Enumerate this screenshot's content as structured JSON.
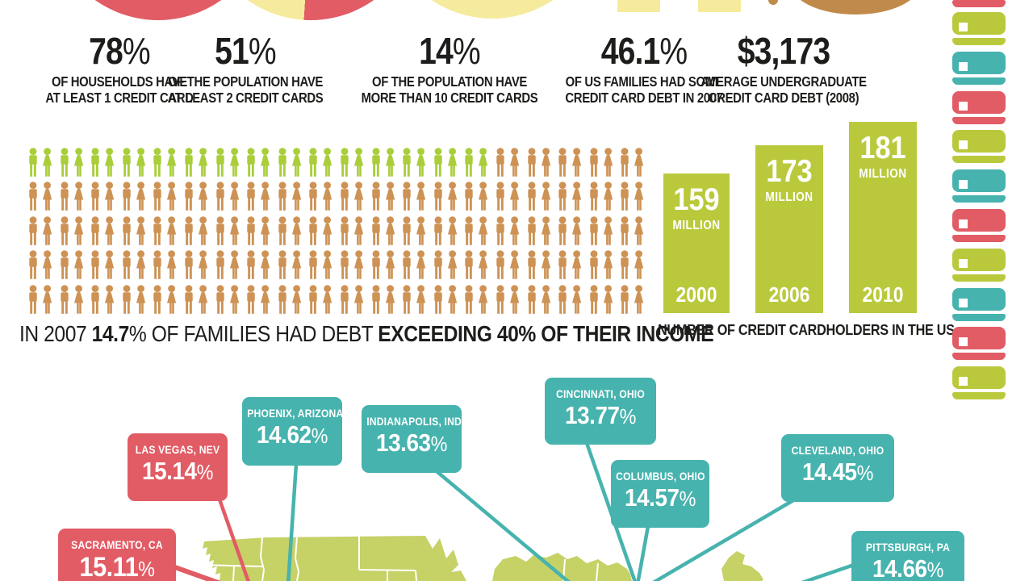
{
  "stats": [
    {
      "value": "78%",
      "lines": [
        "OF HOUSEHOLDS HAVE",
        "AT LEAST 1 CREDIT CARD"
      ]
    },
    {
      "value": "51%",
      "lines": [
        "OF THE POPULATION HAVE",
        "AT LEAST 2 CREDIT CARDS"
      ]
    },
    {
      "value": "14%",
      "lines": [
        "OF THE POPULATION HAVE",
        "MORE THAN 10 CREDIT CARDS"
      ]
    },
    {
      "value": "46.1%",
      "lines": [
        "OF US FAMILIES HAD SOME",
        "CREDIT CARD DEBT IN 2007"
      ]
    },
    {
      "value": "$3,173",
      "lines": [
        "AVERAGE UNDERGRADUATE",
        "CREDIT CARD DEBT (2008)"
      ]
    }
  ],
  "pictogram": {
    "rows": 5,
    "couples_per_row": 20,
    "green_couples_row1": 15,
    "caption_parts": [
      {
        "text": "IN 2007 ",
        "bold": false
      },
      {
        "text": "14.7",
        "bold": true
      },
      {
        "text": "% OF FAMILIES HAD DEBT ",
        "bold": false
      },
      {
        "text": "EXCEEDING 40% OF THEIR INCOME",
        "bold": true
      }
    ]
  },
  "chart_data": [
    {
      "type": "pie",
      "label": "OF HOUSEHOLDS HAVE AT LEAST 1 CREDIT CARD",
      "value_pct": 78
    },
    {
      "type": "pie",
      "label": "OF THE POPULATION HAVE AT LEAST 2 CREDIT CARDS",
      "value_pct": 51
    },
    {
      "type": "pie",
      "label": "OF THE POPULATION HAVE MORE THAN 10 CREDIT CARDS",
      "value_pct": 14
    },
    {
      "type": "pie",
      "label": "OF US FAMILIES HAD SOME CREDIT CARD DEBT IN 2007",
      "value_pct": 46.1
    },
    {
      "type": "stat",
      "label": "AVERAGE UNDERGRADUATE CREDIT CARD DEBT (2008)",
      "value_usd": 3173
    },
    {
      "type": "pictogram",
      "label": "IN 2007 14.7% OF FAMILIES HAD DEBT EXCEEDING 40% OF THEIR INCOME",
      "value_pct": 14.7,
      "rows": 5,
      "icons_per_row": 20,
      "highlighted_icons": 15
    },
    {
      "type": "bar",
      "title": "NUMBER OF CREDIT CARDHOLDERS IN THE US",
      "categories": [
        "2000",
        "2006",
        "2010"
      ],
      "values": [
        159,
        173,
        181
      ],
      "unit_label": "MILLION",
      "unit": "million people",
      "ylim": [
        0,
        190
      ],
      "grid": false,
      "legend": false
    },
    {
      "type": "map",
      "region": "United States",
      "points": [
        {
          "label": "SACRAMENTO, CA",
          "value_pct": 15.11
        },
        {
          "label": "LAS VEGAS, NEV",
          "value_pct": 15.14
        },
        {
          "label": "PHOENIX, ARIZONA",
          "value_pct": 14.62
        },
        {
          "label": "INDIANAPOLIS, IND",
          "value_pct": 13.63
        },
        {
          "label": "CINCINNATI, OHIO",
          "value_pct": 13.77
        },
        {
          "label": "COLUMBUS, OHIO",
          "value_pct": 14.57
        },
        {
          "label": "CLEVELAND, OHIO",
          "value_pct": 14.45
        },
        {
          "label": "PITTSBURGH, PA",
          "value_pct": 14.66
        }
      ]
    }
  ],
  "map": {
    "callouts": [
      {
        "city": "SACRAMENTO, CA",
        "value": "15.11%",
        "color": "red"
      },
      {
        "city": "LAS VEGAS, NEV",
        "value": "15.14%",
        "color": "red"
      },
      {
        "city": "PHOENIX, ARIZONA",
        "value": "14.62%",
        "color": "teal"
      },
      {
        "city": "INDIANAPOLIS, IND",
        "value": "13.63%",
        "color": "teal"
      },
      {
        "city": "CINCINNATI, OHIO",
        "value": "13.77%",
        "color": "teal"
      },
      {
        "city": "COLUMBUS, OHIO",
        "value": "14.57%",
        "color": "teal"
      },
      {
        "city": "CLEVELAND, OHIO",
        "value": "14.45%",
        "color": "teal"
      },
      {
        "city": "PITTSBURGH, PA",
        "value": "14.66%",
        "color": "teal"
      }
    ]
  },
  "card_column": {
    "pattern": [
      "lime",
      "teal",
      "red"
    ],
    "full_cards": 10,
    "top_partial_color": "red"
  },
  "colors": {
    "red": "#e15c65",
    "teal": "#47b3ae",
    "lime": "#bac93c",
    "map_green": "#c6d166",
    "people_green": "#a9ce3a",
    "people_orange": "#cd9254",
    "pale_yellow": "#f6eb9d",
    "brown": "#c08a4b",
    "text": "#1d1d1b",
    "white": "#ffffff"
  }
}
